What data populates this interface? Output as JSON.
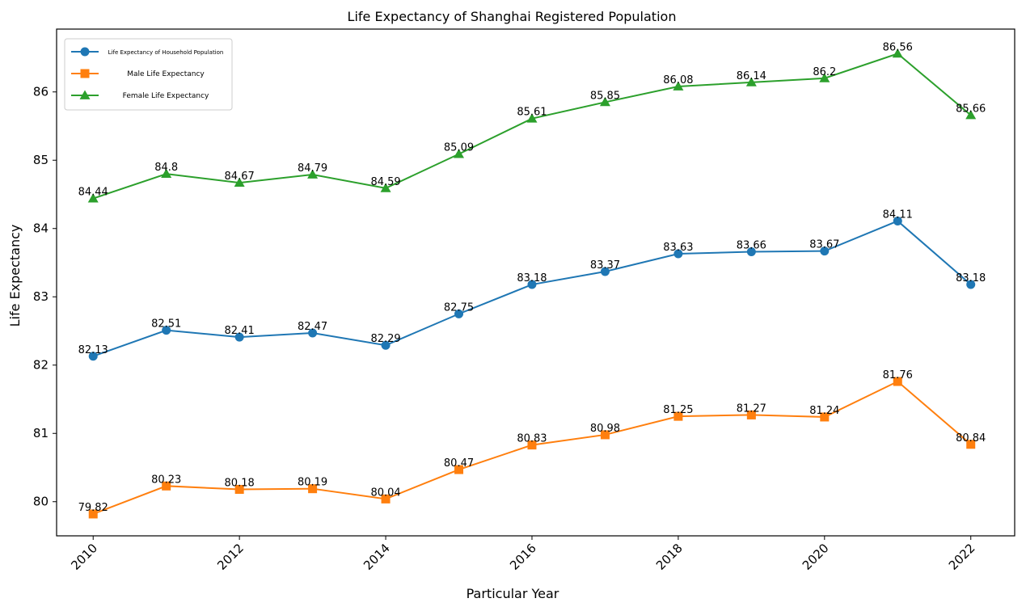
{
  "chart_data": {
    "type": "line",
    "title": "Life Expectancy of Shanghai Registered Population",
    "xlabel": "Particular Year",
    "ylabel": "Life Expectancy",
    "x": [
      2010,
      2011,
      2012,
      2013,
      2014,
      2015,
      2016,
      2017,
      2018,
      2019,
      2020,
      2021,
      2022
    ],
    "x_ticks": [
      "2010",
      "2012",
      "2014",
      "2016",
      "2018",
      "2020",
      "2022"
    ],
    "y_ticks": [
      "80",
      "81",
      "82",
      "83",
      "84",
      "85",
      "86"
    ],
    "xlim": [
      2009.5,
      2022.6
    ],
    "ylim": [
      79.5,
      86.92
    ],
    "grid": true,
    "legend_position": "top-left",
    "series": [
      {
        "name": "Life Expectancy of Household Population",
        "color": "#1f77b4",
        "marker": "circle",
        "values": [
          82.13,
          82.51,
          82.41,
          82.47,
          82.29,
          82.75,
          83.18,
          83.37,
          83.63,
          83.66,
          83.67,
          84.11,
          83.18
        ],
        "labels": [
          "82.13",
          "82.51",
          "82.41",
          "82.47",
          "82.29",
          "82.75",
          "83.18",
          "83.37",
          "83.63",
          "83.66",
          "83.67",
          "84.11",
          "83.18"
        ]
      },
      {
        "name": "Male Life Expectancy",
        "color": "#ff7f0e",
        "marker": "square",
        "values": [
          79.82,
          80.23,
          80.18,
          80.19,
          80.04,
          80.47,
          80.83,
          80.98,
          81.25,
          81.27,
          81.24,
          81.76,
          80.84
        ],
        "labels": [
          "79.82",
          "80.23",
          "80.18",
          "80.19",
          "80.04",
          "80.47",
          "80.83",
          "80.98",
          "81.25",
          "81.27",
          "81.24",
          "81.76",
          "80.84"
        ]
      },
      {
        "name": "Female Life Expectancy",
        "color": "#2ca02c",
        "marker": "triangle",
        "values": [
          84.44,
          84.8,
          84.67,
          84.79,
          84.59,
          85.09,
          85.61,
          85.85,
          86.08,
          86.14,
          86.2,
          86.56,
          85.66
        ],
        "labels": [
          "84.44",
          "84.8",
          "84.67",
          "84.79",
          "84.59",
          "85.09",
          "85.61",
          "85.85",
          "86.08",
          "86.14",
          "86.2",
          "86.56",
          "85.66"
        ]
      }
    ]
  }
}
